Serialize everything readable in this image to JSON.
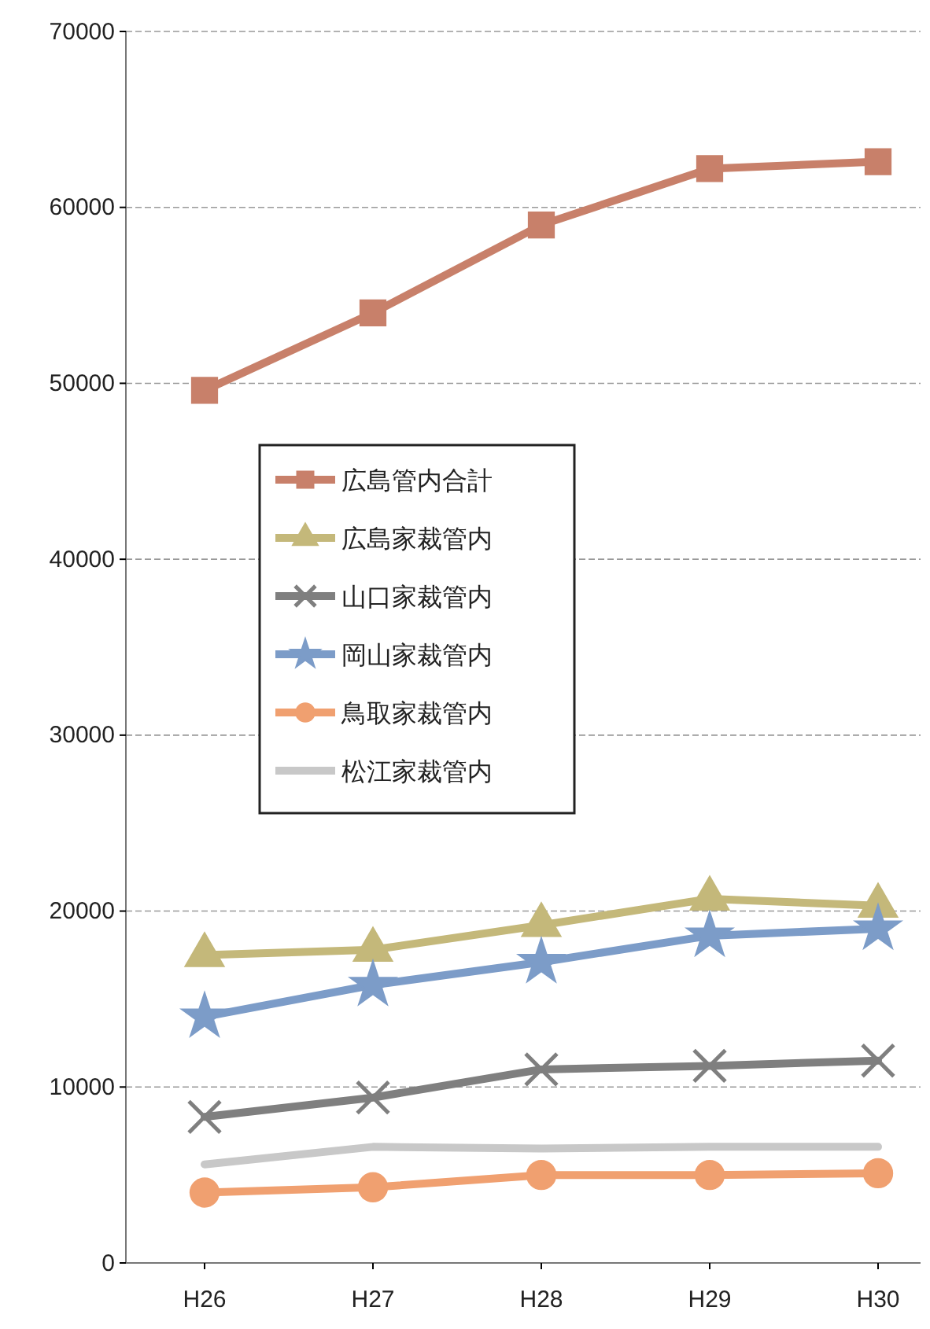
{
  "chart_data": {
    "type": "line",
    "categories": [
      "H26",
      "H27",
      "H28",
      "H29",
      "H30"
    ],
    "series": [
      {
        "name": "広島管内合計",
        "color": "#c8806a",
        "marker": "square",
        "values": [
          49600,
          54000,
          59000,
          62200,
          62600
        ]
      },
      {
        "name": "広島家裁管内",
        "color": "#c4b87a",
        "marker": "triangle",
        "values": [
          17500,
          17800,
          19200,
          20700,
          20300
        ]
      },
      {
        "name": "山口家裁管内",
        "color": "#7f7f7f",
        "marker": "cross",
        "values": [
          8300,
          9400,
          11000,
          11200,
          11500
        ]
      },
      {
        "name": "岡山家裁管内",
        "color": "#7c9cc8",
        "marker": "star",
        "values": [
          14000,
          15800,
          17100,
          18600,
          19000
        ]
      },
      {
        "name": "鳥取家裁管内",
        "color": "#f0a070",
        "marker": "circle",
        "values": [
          4000,
          4300,
          5000,
          5000,
          5100
        ]
      },
      {
        "name": "松江家裁管内",
        "color": "#c8c8c8",
        "marker": "none",
        "values": [
          5600,
          6600,
          6500,
          6600,
          6600
        ]
      }
    ],
    "ylim": [
      0,
      70000
    ],
    "yticks": [
      0,
      10000,
      20000,
      30000,
      40000,
      50000,
      60000,
      70000
    ],
    "grid": "y",
    "legend": "left"
  }
}
